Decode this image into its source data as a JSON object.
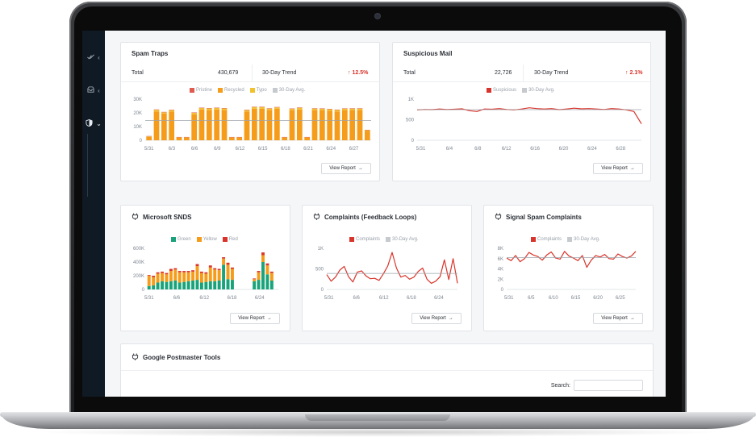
{
  "colors": {
    "accent_red": "#d9342b",
    "orange": "#f59c1a",
    "green": "#1aa37a",
    "gray_avg": "#c6c9ce",
    "sidebar_bg": "#0f1a24"
  },
  "sidebar": {
    "items": [
      {
        "icon": "check-double-icon",
        "chevron": "‹"
      },
      {
        "icon": "inbox-icon",
        "chevron": "‹"
      },
      {
        "icon": "shield-icon",
        "chevron": "⌄"
      }
    ]
  },
  "cards": {
    "spam_traps": {
      "title": "Spam Traps",
      "total_label": "Total",
      "total_value": "430,679",
      "trend_label": "30-Day Trend",
      "trend_value": "12.5%",
      "legend": [
        "Pristine",
        "Recycled",
        "Typo",
        "30-Day Avg."
      ],
      "view_label": "View Report"
    },
    "suspicious_mail": {
      "title": "Suspicious Mail",
      "total_label": "Total",
      "total_value": "22,726",
      "trend_label": "30-Day Trend",
      "trend_value": "2.1%",
      "legend": [
        "Suspicious",
        "30-Day Avg."
      ],
      "view_label": "View Report"
    },
    "microsoft_snds": {
      "title": "Microsoft SNDS",
      "legend": [
        "Green",
        "Yellow",
        "Red"
      ],
      "view_label": "View Report"
    },
    "complaints": {
      "title": "Complaints (Feedback Loops)",
      "legend": [
        "Complaints",
        "30-Day Avg."
      ],
      "view_label": "View Report"
    },
    "signal_spam": {
      "title": "Signal Spam Complaints",
      "legend": [
        "Complaints",
        "30-Day Avg."
      ],
      "view_label": "View Report"
    },
    "postmaster": {
      "title": "Google Postmaster Tools",
      "search_label": "Search:",
      "search_value": ""
    }
  },
  "chart_data": [
    {
      "id": "spam_traps",
      "type": "bar",
      "x_ticks": [
        "5/31",
        "6/3",
        "6/6",
        "6/9",
        "6/12",
        "6/15",
        "6/18",
        "6/21",
        "6/24",
        "6/27"
      ],
      "y_ticks": [
        "30K",
        "20K",
        "10K",
        "0"
      ],
      "ylim": [
        0,
        30000
      ],
      "series": [
        {
          "name": "Recycled",
          "values": [
            2500,
            21000,
            19500,
            21000,
            2000,
            2000,
            19000,
            22500,
            22000,
            22500,
            22000,
            2000,
            2000,
            21000,
            23000,
            23000,
            22000,
            23000,
            2000,
            22000,
            22500,
            2000,
            22000,
            22000,
            21500,
            21000,
            22000,
            22000,
            22000,
            7000
          ]
        },
        {
          "name": "Typo",
          "values": [
            400,
            1200,
            900,
            1000,
            300,
            300,
            1000,
            1000,
            1200,
            1000,
            1200,
            300,
            300,
            1000,
            1200,
            1200,
            1100,
            1000,
            300,
            900,
            1200,
            300,
            1100,
            1000,
            1100,
            1100,
            1000,
            1100,
            1100,
            400
          ]
        },
        {
          "name": "Pristine",
          "values": [
            200,
            300,
            300,
            300,
            100,
            100,
            300,
            300,
            300,
            300,
            300,
            100,
            100,
            300,
            300,
            300,
            300,
            300,
            100,
            300,
            300,
            100,
            300,
            300,
            300,
            300,
            300,
            300,
            300,
            200
          ]
        }
      ],
      "avg": 14500,
      "legend": [
        "Pristine",
        "Recycled",
        "Typo",
        "30-Day Avg."
      ],
      "legend_position": "top-center",
      "grid": false
    },
    {
      "id": "suspicious_mail",
      "type": "line",
      "x_ticks": [
        "5/31",
        "6/4",
        "6/8",
        "6/12",
        "6/16",
        "6/20",
        "6/24",
        "6/28"
      ],
      "y_ticks": [
        "1K",
        "500",
        "0"
      ],
      "ylim": [
        0,
        1000
      ],
      "series": [
        {
          "name": "Suspicious",
          "values": [
            740,
            750,
            745,
            760,
            750,
            755,
            765,
            720,
            700,
            760,
            755,
            770,
            750,
            740,
            760,
            790,
            770,
            760,
            770,
            745,
            760,
            780,
            765,
            770,
            760,
            750,
            770,
            760,
            740,
            700,
            400
          ]
        }
      ],
      "avg": 745,
      "legend": [
        "Suspicious",
        "30-Day Avg."
      ],
      "legend_position": "top-center",
      "grid": false
    },
    {
      "id": "microsoft_snds",
      "type": "bar",
      "x_ticks": [
        "5/31",
        "6/6",
        "6/12",
        "6/18",
        "6/24"
      ],
      "y_ticks": [
        "600K",
        "400K",
        "200K",
        "0"
      ],
      "ylim": [
        0,
        600000
      ],
      "series": [
        {
          "name": "Green",
          "values": [
            50000,
            60000,
            100000,
            120000,
            110000,
            120000,
            130000,
            100000,
            110000,
            120000,
            130000,
            140000,
            100000,
            110000,
            120000,
            120000,
            130000,
            360000,
            150000,
            140000,
            0,
            0,
            0,
            0,
            120000,
            140000,
            400000,
            220000,
            130000,
            0
          ]
        },
        {
          "name": "Yellow",
          "values": [
            150000,
            120000,
            130000,
            120000,
            110000,
            150000,
            160000,
            150000,
            140000,
            130000,
            130000,
            200000,
            140000,
            120000,
            200000,
            170000,
            150000,
            90000,
            210000,
            160000,
            0,
            0,
            0,
            0,
            30000,
            110000,
            100000,
            130000,
            110000,
            0
          ]
        },
        {
          "name": "Red",
          "values": [
            10000,
            20000,
            20000,
            20000,
            20000,
            30000,
            20000,
            20000,
            20000,
            20000,
            20000,
            30000,
            20000,
            20000,
            30000,
            20000,
            20000,
            20000,
            30000,
            20000,
            0,
            0,
            0,
            0,
            10000,
            20000,
            40000,
            30000,
            20000,
            0
          ]
        }
      ],
      "legend": [
        "Green",
        "Yellow",
        "Red"
      ],
      "legend_position": "top-center",
      "grid": false
    },
    {
      "id": "complaints",
      "type": "line",
      "x_ticks": [
        "5/31",
        "6/6",
        "6/12",
        "6/18",
        "6/24"
      ],
      "y_ticks": [
        "1K",
        "500",
        "0"
      ],
      "ylim": [
        0,
        1000
      ],
      "series": [
        {
          "name": "Complaints",
          "values": [
            360,
            200,
            300,
            470,
            560,
            310,
            180,
            420,
            450,
            330,
            260,
            270,
            220,
            380,
            570,
            900,
            520,
            300,
            340,
            250,
            300,
            440,
            520,
            250,
            150,
            200,
            310,
            720,
            240,
            750,
            150
          ]
        }
      ],
      "avg": 390,
      "legend": [
        "Complaints",
        "30-Day Avg."
      ],
      "legend_position": "top-center",
      "grid": false
    },
    {
      "id": "signal_spam",
      "type": "line",
      "x_ticks": [
        "5/31",
        "6/5",
        "6/10",
        "6/15",
        "6/20",
        "6/25"
      ],
      "y_ticks": [
        "8K",
        "6K",
        "4K",
        "2K",
        "0"
      ],
      "ylim": [
        0,
        8000
      ],
      "series": [
        {
          "name": "Complaints",
          "values": [
            6100,
            5600,
            6600,
            5400,
            6000,
            7200,
            6700,
            6400,
            5700,
            6700,
            7300,
            6100,
            5900,
            7400,
            6500,
            6100,
            5600,
            6600,
            4300,
            5700,
            6600,
            6300,
            6800,
            6000,
            5900,
            6900,
            6400,
            6100,
            6500,
            7400
          ]
        }
      ],
      "avg": 6200,
      "legend": [
        "Complaints",
        "30-Day Avg."
      ],
      "legend_position": "top-center",
      "grid": false
    }
  ]
}
